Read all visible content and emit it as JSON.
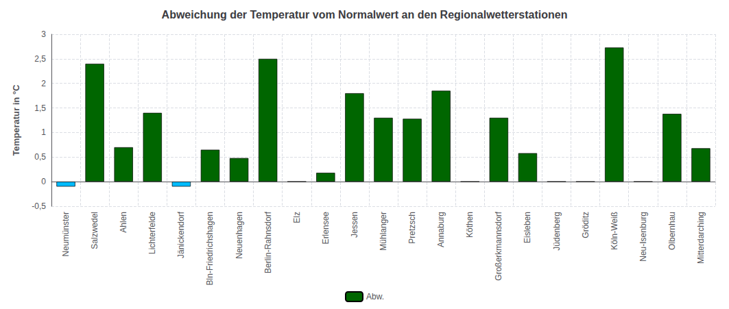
{
  "chart_data": {
    "type": "bar",
    "title": "Abweichung der Temperatur vom Normalwert an den Regionalwetterstationen",
    "ylabel": "Temperatur in °C",
    "categories": [
      "Neumünster",
      "Salzwedel",
      "Ahlen",
      "Lichterfelde",
      "Jänickendorf",
      "Bln-Friedrichshagen",
      "Neuenhagen",
      "Berlin-Rahnsdorf",
      "Elz",
      "Erlensee",
      "Jessen",
      "Mühlanger",
      "Pretzsch",
      "Annaburg",
      "Köthen",
      "Großerkmannsdorf",
      "Eisleben",
      "Jüdenberg",
      "Gröditz",
      "Köln-Weiß",
      "Neu-Isenburg",
      "Olbernhau",
      "Mitterdarching"
    ],
    "series": [
      {
        "name": "Abw.",
        "color": "#006600",
        "colors": [
          "#00BBFF",
          "#006600",
          "#006600",
          "#006600",
          "#00BBFF",
          "#006600",
          "#006600",
          "#006600",
          "#006600",
          "#006600",
          "#006600",
          "#006600",
          "#006600",
          "#006600",
          "#006600",
          "#006600",
          "#006600",
          "#006600",
          "#006600",
          "#006600",
          "#006600",
          "#006600",
          "#006600"
        ],
        "values": [
          -0.1,
          2.4,
          0.7,
          1.4,
          -0.1,
          0.65,
          0.48,
          2.5,
          0.0,
          0.18,
          1.8,
          1.3,
          1.28,
          1.85,
          0.0,
          1.3,
          0.58,
          0.0,
          0.0,
          2.73,
          0.0,
          1.38,
          0.68
        ]
      }
    ],
    "ylim": [
      -0.5,
      3.0
    ],
    "yticks": [
      {
        "value": -0.5,
        "label": "-0,5"
      },
      0,
      {
        "value": 0.5,
        "label": "0,5"
      },
      1,
      {
        "value": 1.5,
        "label": "1,5"
      },
      2,
      {
        "value": 2.5,
        "label": "2,5"
      },
      3
    ],
    "grid": true,
    "legend": "bottom"
  }
}
